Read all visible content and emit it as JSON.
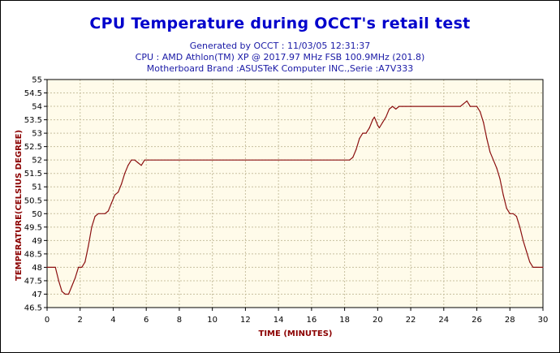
{
  "title": "CPU Temperature during OCCT's retail test",
  "subtitles": [
    "Generated by OCCT : 11/03/05 12:31:37",
    "CPU : AMD Athlon(TM) XP @ 2017.97 MHz FSB 100.9MHz (201.8)",
    "Motherboard Brand :ASUSTeK Computer INC.,Serie :A7V333"
  ],
  "colors": {
    "title": "#0000cc",
    "subtitle": "#1a1aa6",
    "plot_background": "#fffbea",
    "grid": "#c8c0a0",
    "line": "#8b1010",
    "axis_title": "#8b0000"
  },
  "chart_data": {
    "type": "line",
    "title": "CPU Temperature during OCCT's retail test",
    "xlabel": "TIME (MINUTES)",
    "ylabel": "TEMPERATURE(CELSIUS DEGREE)",
    "xlim": [
      0,
      30
    ],
    "ylim": [
      46.5,
      55
    ],
    "x_ticks": [
      0,
      2,
      4,
      6,
      8,
      10,
      12,
      14,
      16,
      18,
      20,
      22,
      24,
      26,
      28,
      30
    ],
    "y_ticks": [
      "46.5",
      "47",
      "47.5",
      "48",
      "48.5",
      "49",
      "49.5",
      "50",
      "50.5",
      "51",
      "51.5",
      "52",
      "52.5",
      "53",
      "53.5",
      "54",
      "54.5",
      "55"
    ],
    "grid": true,
    "series": [
      {
        "x": [
          0,
          0.5,
          0.7,
          0.9,
          1.1,
          1.3,
          1.5,
          1.7,
          1.9,
          2.1,
          2.3,
          2.5,
          2.7,
          2.9,
          3.1,
          3.5,
          3.7,
          3.9,
          4.1,
          4.3,
          4.5,
          4.7,
          4.9,
          5.1,
          5.3,
          5.5,
          5.7,
          5.9,
          6.1,
          18.3,
          18.5,
          18.7,
          18.9,
          19.1,
          19.3,
          19.5,
          19.7,
          19.8,
          20.0,
          20.1,
          20.3,
          20.5,
          20.7,
          20.9,
          21.1,
          21.3,
          21.5,
          21.7,
          22.0,
          25.0,
          25.2,
          25.4,
          25.6,
          26.0,
          26.2,
          26.4,
          26.6,
          26.8,
          27.0,
          27.2,
          27.4,
          27.6,
          27.8,
          28.0,
          28.2,
          28.4,
          28.6,
          28.8,
          29.0,
          29.2,
          29.4,
          29.6,
          30
        ],
        "y": [
          48,
          48,
          47.5,
          47.1,
          47,
          47,
          47.3,
          47.6,
          48,
          48,
          48.2,
          48.8,
          49.5,
          49.9,
          50,
          50,
          50.1,
          50.4,
          50.7,
          50.8,
          51.1,
          51.5,
          51.8,
          52,
          52,
          51.9,
          51.8,
          52,
          52,
          52,
          52.1,
          52.4,
          52.8,
          53,
          53,
          53.2,
          53.5,
          53.6,
          53.3,
          53.2,
          53.4,
          53.6,
          53.9,
          54,
          53.9,
          54,
          54,
          54,
          54,
          54,
          54.1,
          54.2,
          54,
          54,
          53.8,
          53.4,
          52.8,
          52.3,
          52,
          51.7,
          51.3,
          50.7,
          50.2,
          50,
          50,
          49.9,
          49.5,
          49,
          48.6,
          48.2,
          48,
          48,
          48
        ]
      }
    ]
  }
}
